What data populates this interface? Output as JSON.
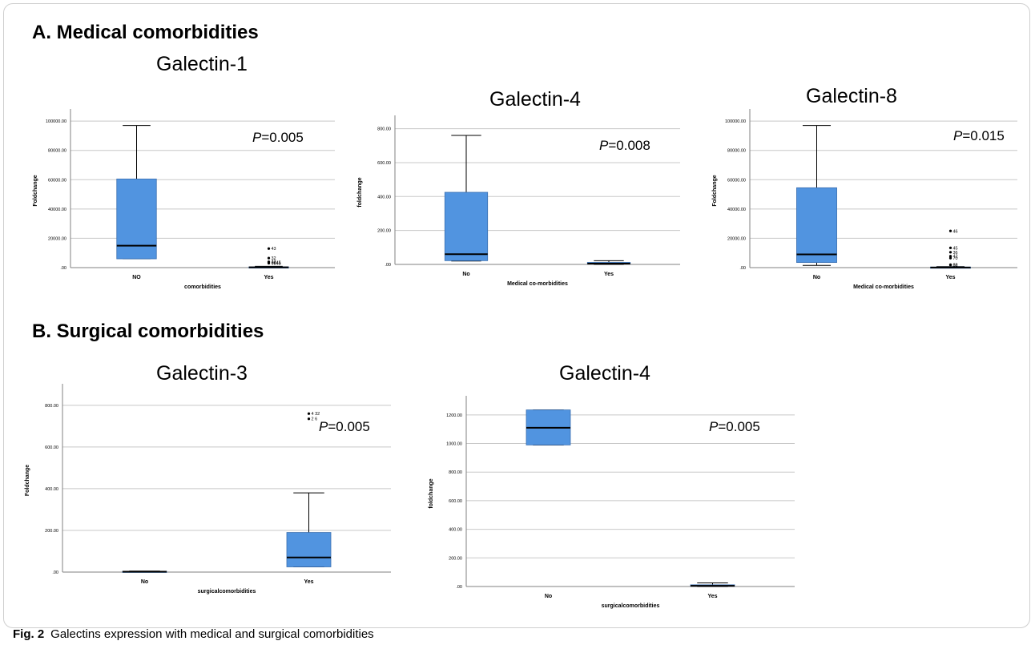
{
  "sections": {
    "a": "A. Medical comorbidities",
    "b": "B. Surgical comorbidities"
  },
  "caption": {
    "label": "Fig. 2",
    "text": "Galectins expression with medical and surgical comorbidities"
  },
  "colors": {
    "box": "#5194e0",
    "grid": "#c8c8c8",
    "axis": "#808080"
  },
  "chart_data": [
    {
      "type": "box",
      "title": "Galectin-1",
      "p_label": "P",
      "p_value": "=0.005",
      "xlabel": "comorbidities",
      "ylabel": "Foldchange",
      "categories": [
        "NO",
        "Yes"
      ],
      "ylim": [
        0,
        105000
      ],
      "yticks": [
        0,
        20000,
        40000,
        60000,
        80000,
        100000
      ],
      "ytick_labels": [
        ".00",
        "20000.00",
        "40000.00",
        "60000.00",
        "80000.00",
        "100000.00"
      ],
      "boxes": [
        {
          "min": 6000,
          "q1": 6000,
          "median": 15000,
          "q3": 60500,
          "max": 97000
        },
        {
          "min": 0,
          "q1": 0,
          "median": 200,
          "q3": 500,
          "max": 900
        }
      ],
      "outliers": [
        {
          "cat": 1,
          "value": 13000,
          "label": "43"
        },
        {
          "cat": 1,
          "value": 6500,
          "label": "32"
        },
        {
          "cat": 1,
          "value": 4000,
          "label": "47"
        },
        {
          "cat": 1,
          "value": 3000,
          "label": "4945"
        },
        {
          "cat": 1,
          "value": 3500,
          "label": "3845"
        }
      ]
    },
    {
      "type": "box",
      "title": "Galectin-4",
      "p_label": "P",
      "p_value": "=0.008",
      "xlabel": "Medical co-morbidities",
      "ylabel": "foldchange",
      "categories": [
        "No",
        "Yes"
      ],
      "ylim": [
        0,
        850
      ],
      "yticks": [
        0,
        200,
        400,
        600,
        800
      ],
      "ytick_labels": [
        ".00",
        "200.00",
        "400.00",
        "600.00",
        "800.00"
      ],
      "boxes": [
        {
          "min": 20,
          "q1": 22,
          "median": 60,
          "q3": 425,
          "max": 760
        },
        {
          "min": 0,
          "q1": 2,
          "median": 5,
          "q3": 12,
          "max": 22
        }
      ],
      "outliers": []
    },
    {
      "type": "box",
      "title": "Galectin-8",
      "p_label": "P",
      "p_value": "=0.015",
      "xlabel": "Medical co-morbidities",
      "ylabel": "Foldchange",
      "categories": [
        "No",
        "Yes"
      ],
      "ylim": [
        0,
        105000
      ],
      "yticks": [
        0,
        20000,
        40000,
        60000,
        80000,
        100000
      ],
      "ytick_labels": [
        ".00",
        "20000.00",
        "40000.00",
        "60000.00",
        "80000.00",
        "100000.00"
      ],
      "boxes": [
        {
          "min": 1500,
          "q1": 3500,
          "median": 9000,
          "q3": 54500,
          "max": 97000
        },
        {
          "min": 0,
          "q1": 0,
          "median": 100,
          "q3": 400,
          "max": 700
        }
      ],
      "outliers": [
        {
          "cat": 1,
          "value": 25000,
          "label": "46"
        },
        {
          "cat": 1,
          "value": 13500,
          "label": "45"
        },
        {
          "cat": 1,
          "value": 10500,
          "label": "36"
        },
        {
          "cat": 1,
          "value": 6500,
          "label": "70"
        },
        {
          "cat": 1,
          "value": 7800,
          "label": "42"
        },
        {
          "cat": 1,
          "value": 2000,
          "label": "32"
        },
        {
          "cat": 1,
          "value": 1800,
          "label": "66"
        }
      ]
    },
    {
      "type": "box",
      "title": "Galectin-3",
      "p_label": "P",
      "p_value": "=0.005",
      "xlabel": "surgicalcomorbidities",
      "ylabel": "Foldchange",
      "categories": [
        "No",
        "Yes"
      ],
      "ylim": [
        0,
        880
      ],
      "yticks": [
        0,
        200,
        400,
        600,
        800
      ],
      "ytick_labels": [
        ".00",
        "200.00",
        "400.00",
        "600.00",
        "800.00"
      ],
      "boxes": [
        {
          "min": 0,
          "q1": 0,
          "median": 2,
          "q3": 4,
          "max": 5
        },
        {
          "min": 25,
          "q1": 25,
          "median": 70,
          "q3": 190,
          "max": 380
        }
      ],
      "outliers": [
        {
          "cat": 1,
          "value": 760,
          "label": "4 32"
        },
        {
          "cat": 1,
          "value": 735,
          "label": "2 6"
        }
      ]
    },
    {
      "type": "box",
      "title": "Galectin-4",
      "p_label": "P",
      "p_value": "=0.005",
      "xlabel": "surgicalcomorbidities",
      "ylabel": "foldchange",
      "categories": [
        "No",
        "Yes"
      ],
      "ylim": [
        0,
        1300
      ],
      "yticks": [
        0,
        200,
        400,
        600,
        800,
        1000,
        1200
      ],
      "ytick_labels": [
        ".00",
        "200.00",
        "400.00",
        "600.00",
        "800.00",
        "1000.00",
        "1200.00"
      ],
      "boxes": [
        {
          "min": 990,
          "q1": 990,
          "median": 1110,
          "q3": 1235,
          "max": 1235
        },
        {
          "min": 0,
          "q1": 2,
          "median": 5,
          "q3": 12,
          "max": 25
        }
      ],
      "outliers": []
    }
  ]
}
